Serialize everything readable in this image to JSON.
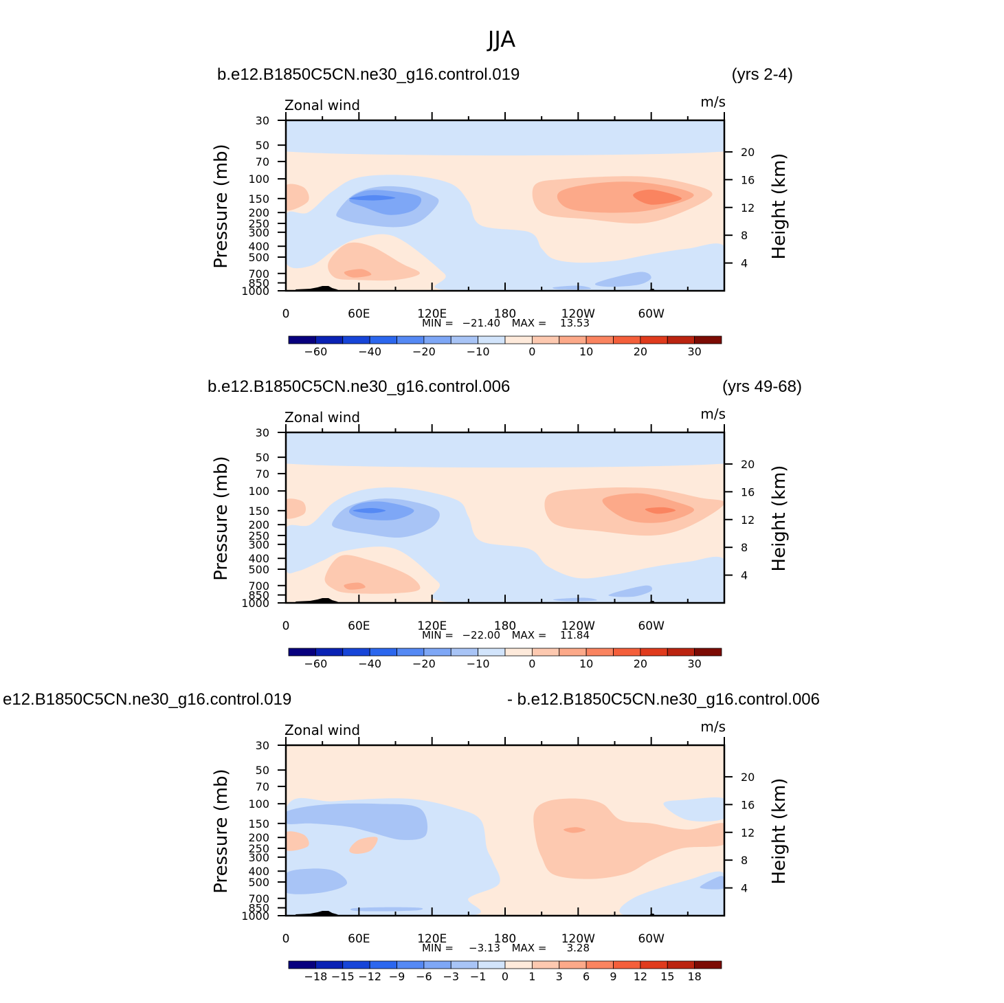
{
  "page_title": "JJA",
  "chart_data": [
    {
      "type": "heatmap",
      "case_label": "b.e12.B1850C5CN.ne30_g16.control.019",
      "years_label": "(yrs 2-4)",
      "title": "Zonal wind",
      "units": "m/s",
      "ylabel": "Pressure (mb)",
      "y2label": "Height (km)",
      "xlim": [
        0,
        360
      ],
      "ylim": [
        1000,
        30
      ],
      "x_ticks": [
        "0",
        "60E",
        "120E",
        "180",
        "120W",
        "60W"
      ],
      "y_ticks": [
        "30",
        "50",
        "70",
        "100",
        "150",
        "200",
        "250",
        "300",
        "400",
        "500",
        "700",
        "850",
        "1000"
      ],
      "y2_ticks": [
        "20",
        "16",
        "12",
        "8",
        "4"
      ],
      "min_label": "MIN =",
      "min_value": "−21.40",
      "max_label": "MAX =",
      "max_value": "13.53",
      "colorbar_labels": [
        "−60",
        "−40",
        "−20",
        "−10",
        "0",
        "10",
        "20",
        "30"
      ],
      "features": [
        {
          "x": 75,
          "p": 148,
          "value": -20,
          "note": "easterly jet core"
        },
        {
          "x": 300,
          "p": 148,
          "value": 13,
          "note": "westerly jet core"
        },
        {
          "x": 55,
          "p": 700,
          "value": 5,
          "note": "lower troposphere westerly"
        }
      ]
    },
    {
      "type": "heatmap",
      "case_label": "b.e12.B1850C5CN.ne30_g16.control.006",
      "years_label": "(yrs 49-68)",
      "title": "Zonal wind",
      "units": "m/s",
      "ylabel": "Pressure (mb)",
      "y2label": "Height (km)",
      "xlim": [
        0,
        360
      ],
      "ylim": [
        1000,
        30
      ],
      "x_ticks": [
        "0",
        "60E",
        "120E",
        "180",
        "120W",
        "60W"
      ],
      "y_ticks": [
        "30",
        "50",
        "70",
        "100",
        "150",
        "200",
        "250",
        "300",
        "400",
        "500",
        "700",
        "850",
        "1000"
      ],
      "y2_ticks": [
        "20",
        "16",
        "12",
        "8",
        "4"
      ],
      "min_label": "MIN =",
      "min_value": "−22.00",
      "max_label": "MAX =",
      "max_value": "11.84",
      "colorbar_labels": [
        "−60",
        "−40",
        "−20",
        "−10",
        "0",
        "10",
        "20",
        "30"
      ],
      "features": [
        {
          "x": 72,
          "p": 150,
          "value": -20,
          "note": "easterly jet core"
        },
        {
          "x": 305,
          "p": 150,
          "value": 11,
          "note": "westerly jet core"
        },
        {
          "x": 55,
          "p": 700,
          "value": 5,
          "note": "lower troposphere westerly"
        }
      ]
    },
    {
      "type": "heatmap",
      "case_label": "e12.B1850C5CN.ne30_g16.control.019",
      "years_label": "- b.e12.B1850C5CN.ne30_g16.control.006",
      "title": "Zonal wind",
      "units": "m/s",
      "ylabel": "Pressure (mb)",
      "y2label": "Height (km)",
      "xlim": [
        0,
        360
      ],
      "ylim": [
        1000,
        30
      ],
      "x_ticks": [
        "0",
        "60E",
        "120E",
        "180",
        "120W",
        "60W"
      ],
      "y_ticks": [
        "30",
        "50",
        "70",
        "100",
        "150",
        "200",
        "250",
        "300",
        "400",
        "500",
        "700",
        "850",
        "1000"
      ],
      "y2_ticks": [
        "20",
        "16",
        "12",
        "8",
        "4"
      ],
      "min_label": "MIN =",
      "min_value": "−3.13",
      "max_label": "MAX =",
      "max_value": "3.28",
      "colorbar_labels": [
        "−18",
        "−15",
        "−12",
        "−9",
        "−6",
        "−3",
        "−1",
        "0",
        "1",
        "3",
        "6",
        "9",
        "12",
        "15",
        "18"
      ],
      "features": [
        {
          "x": 235,
          "p": 180,
          "value": 3,
          "note": "positive difference maximum"
        },
        {
          "x": 70,
          "p": 120,
          "value": -3,
          "note": "negative difference region"
        }
      ]
    }
  ],
  "colorbar_colors": [
    "#08007e",
    "#0a22b4",
    "#1745d8",
    "#2c67ee",
    "#5589f4",
    "#7ea7f6",
    "#a8c4f6",
    "#d2e4fb",
    "#feeadb",
    "#fdc9b0",
    "#fca989",
    "#fa8460",
    "#f45f3b",
    "#e03b1d",
    "#bb2410",
    "#7c0b04"
  ]
}
